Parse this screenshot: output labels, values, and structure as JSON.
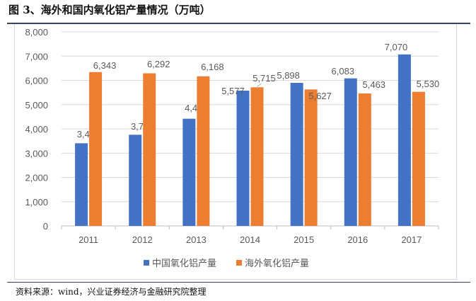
{
  "title": "图 3、海外和国内氧化铝产量情况（万吨）",
  "source": "资料来源：wind，兴业证券经济与金融研究院整理",
  "chart_data": {
    "type": "bar",
    "categories": [
      "2011",
      "2012",
      "2013",
      "2014",
      "2015",
      "2016",
      "2017"
    ],
    "series": [
      {
        "name": "中国氧化铝产量",
        "color": "#4472c4",
        "values": [
          3408,
          3759,
          4419,
          5577,
          5898,
          6083,
          7070
        ],
        "labels": [
          "3,408",
          "3,759",
          "4,419",
          "5,577",
          "5,898",
          "6,083",
          "7,070"
        ]
      },
      {
        "name": "海外氧化铝产量",
        "color": "#ed7d31",
        "values": [
          6343,
          6292,
          6168,
          5715,
          5627,
          5463,
          5530
        ],
        "labels": [
          "6,343",
          "6,292",
          "6,168",
          "5,715",
          "5,627",
          "5,463",
          "5,530"
        ]
      }
    ],
    "ylim": [
      0,
      8000
    ],
    "yticks": [
      "0",
      "1,000",
      "2,000",
      "3,000",
      "4,000",
      "5,000",
      "6,000",
      "7,000",
      "8,000"
    ],
    "grid": true,
    "legend": "bottom"
  }
}
